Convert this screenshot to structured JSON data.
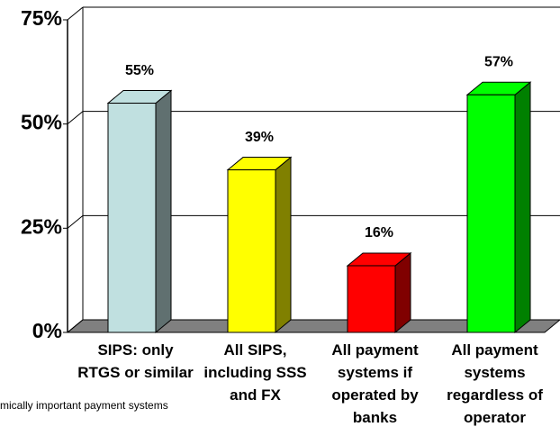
{
  "chart_data": {
    "type": "bar3d",
    "categories": [
      "SIPS: only RTGS or similar",
      "All SIPS, including SSS and FX",
      "All payment systems if operated by banks",
      "All payment systems regardless of operator"
    ],
    "values": [
      55,
      39,
      16,
      57
    ],
    "value_labels": [
      "55%",
      "39%",
      "16%",
      "57%"
    ],
    "colors": [
      "#c0e0e0",
      "#ffff00",
      "#ff0000",
      "#00ff00"
    ],
    "side_colors": [
      "#607070",
      "#808000",
      "#800000",
      "#008000"
    ],
    "ylim": [
      0,
      75
    ],
    "yticks": [
      {
        "value": 0,
        "label": "0%"
      },
      {
        "value": 25,
        "label": "25%"
      },
      {
        "value": 50,
        "label": "50%"
      },
      {
        "value": 75,
        "label": "75%"
      }
    ],
    "grid": true,
    "footnote": "mically important payment systems"
  }
}
